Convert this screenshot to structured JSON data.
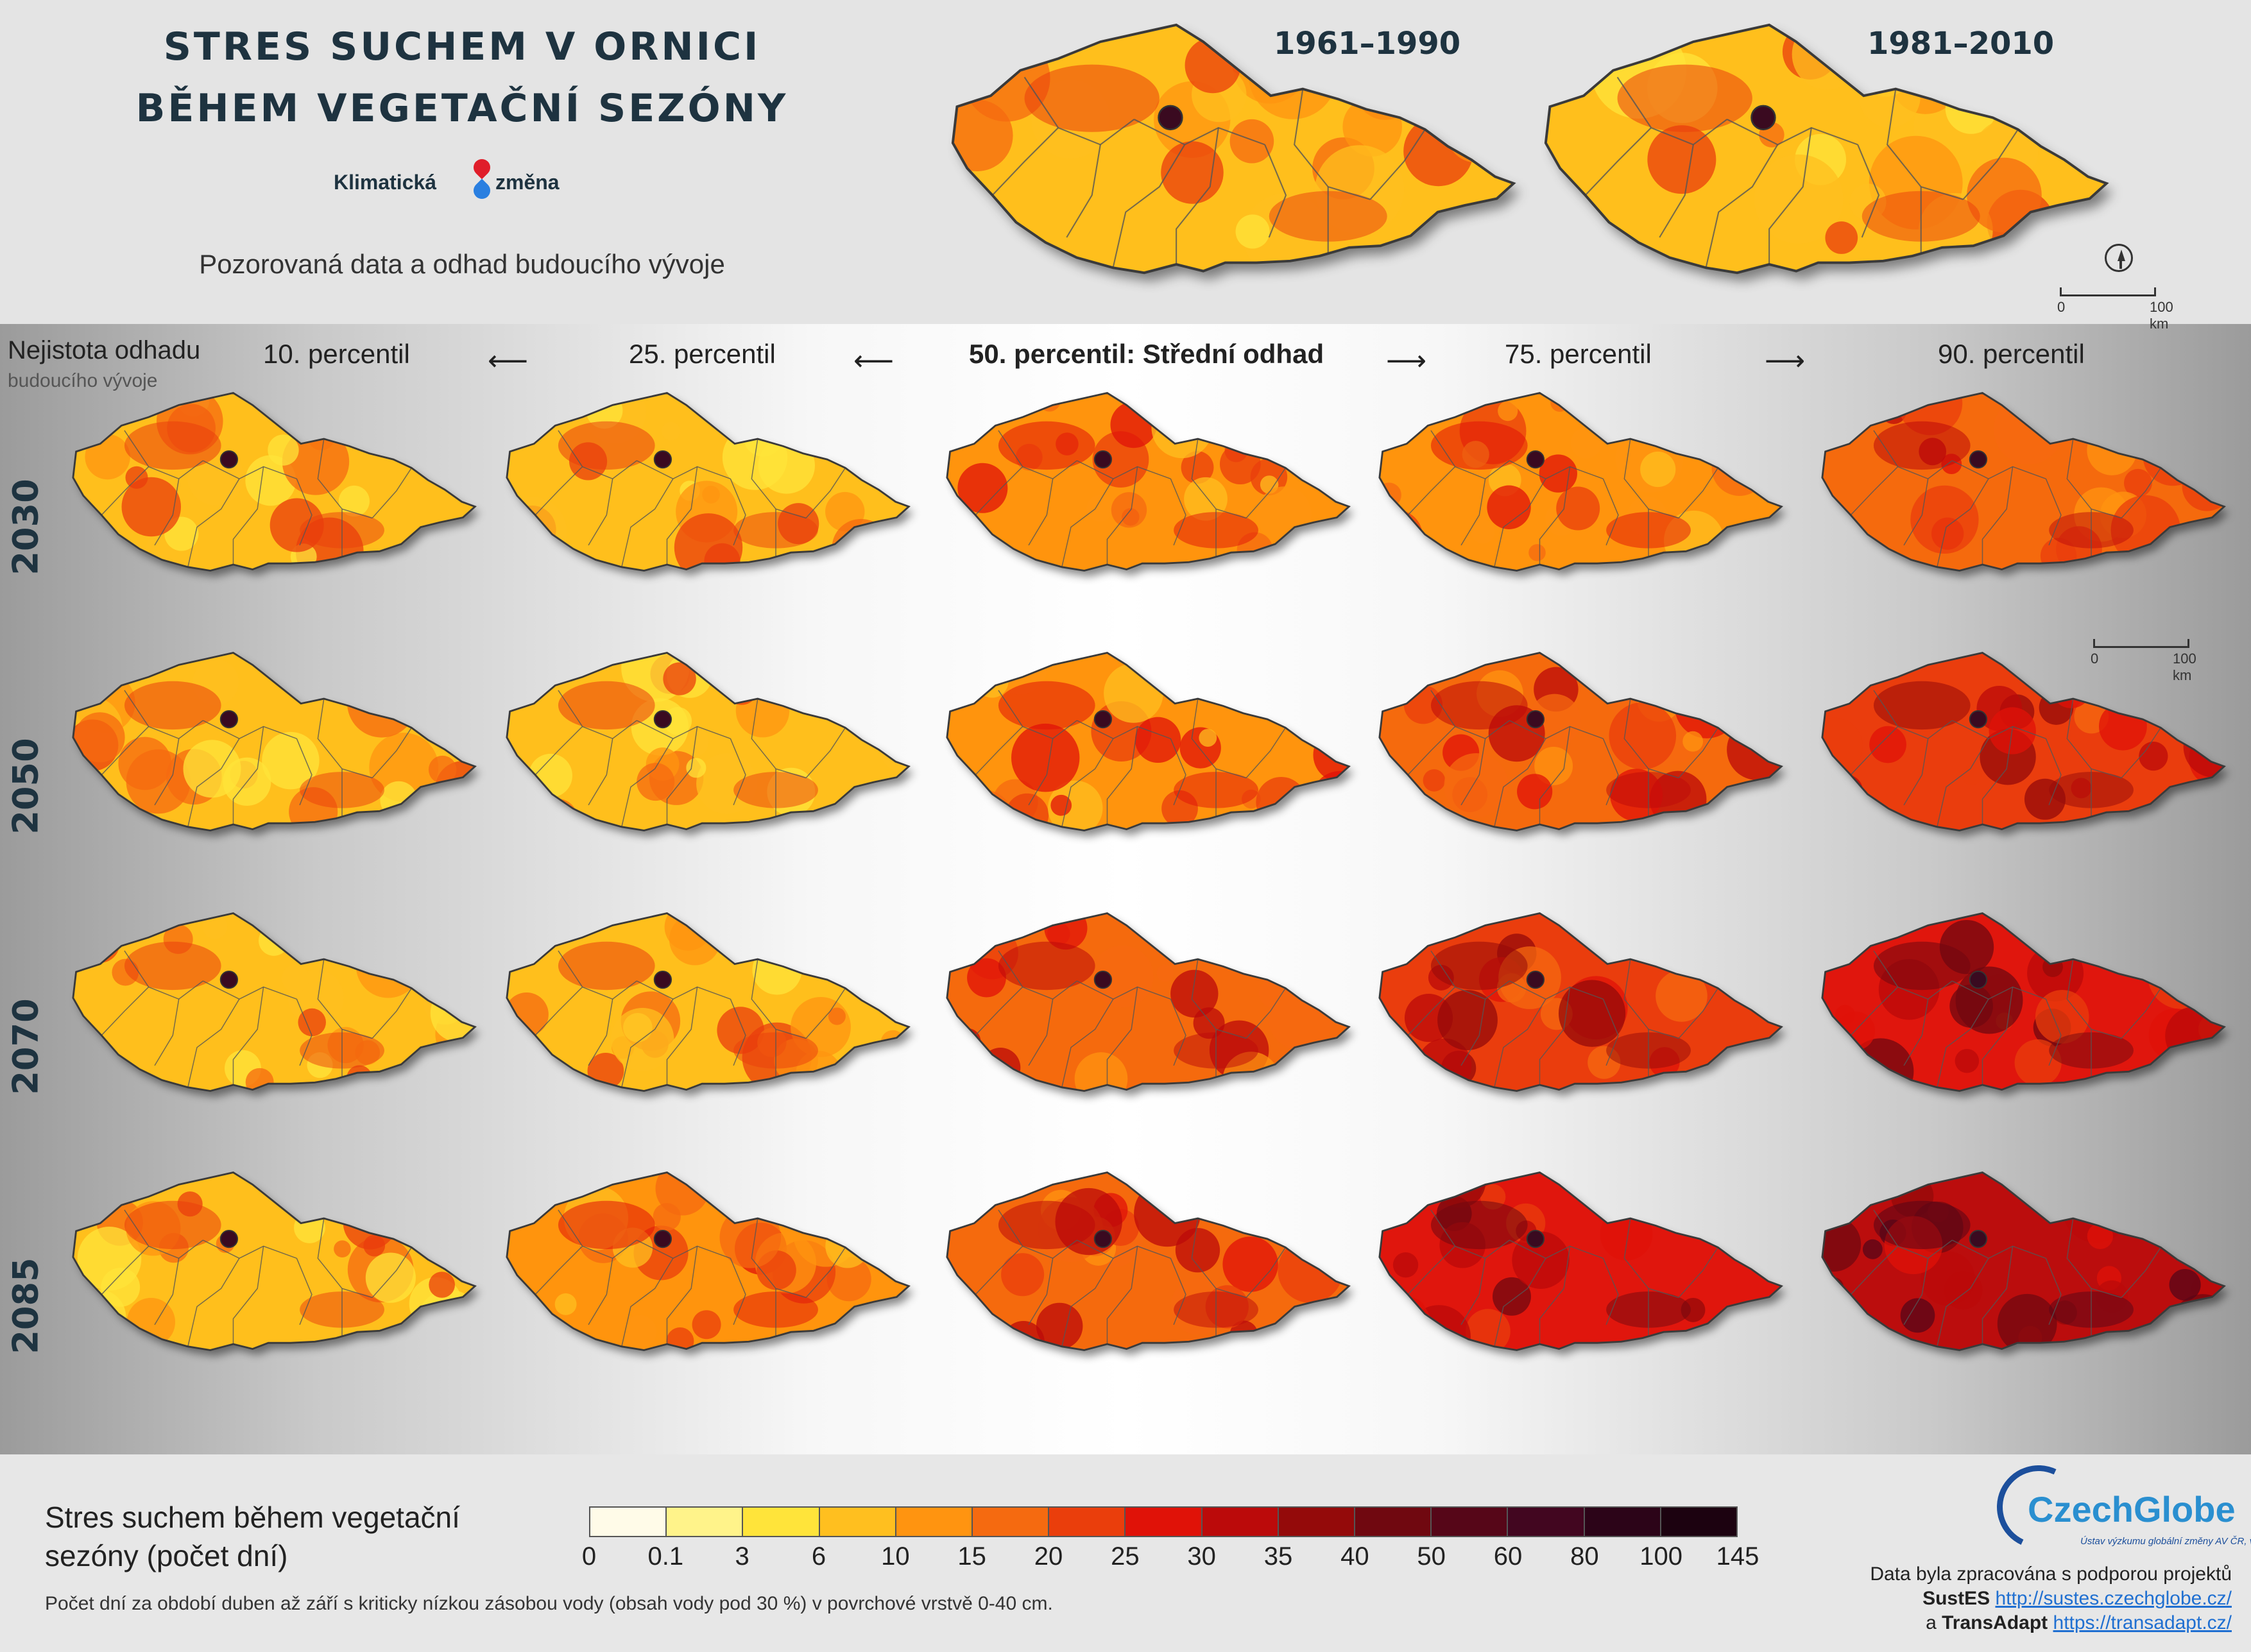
{
  "header": {
    "title_line1": "STRES SUCHEM V ORNICI",
    "title_line2": "BĚHEM VEGETAČNÍ SEZÓNY",
    "logo_left": "Klimatická",
    "logo_right": "změna",
    "subtitle": "Pozorovaná data a odhad budoucího vývoje"
  },
  "observed": {
    "periods": [
      {
        "label": "1961–1990",
        "intensity": 0.1
      },
      {
        "label": "1981–2010",
        "intensity": 0.14
      }
    ],
    "scale_zero": "0",
    "scale_label": "100 km"
  },
  "uncertainty": {
    "line1": "Nejistota odhadu",
    "line2": "budoucího vývoje"
  },
  "columns": [
    "10. percentil",
    "25. percentil",
    "50. percentil: Střední odhad",
    "75. percentil",
    "90. percentil"
  ],
  "arrows": {
    "left": "⟵",
    "right": "⟶"
  },
  "rows": [
    {
      "year": "2030",
      "intensity": [
        0.1,
        0.14,
        0.22,
        0.34,
        0.46
      ]
    },
    {
      "year": "2050",
      "intensity": [
        0.12,
        0.17,
        0.28,
        0.44,
        0.56
      ]
    },
    {
      "year": "2070",
      "intensity": [
        0.14,
        0.2,
        0.36,
        0.58,
        0.76
      ]
    },
    {
      "year": "2085",
      "intensity": [
        0.16,
        0.22,
        0.48,
        0.7,
        0.9
      ]
    }
  ],
  "grid_scale": {
    "zero": "0",
    "label": "100 km"
  },
  "legend": {
    "title_line1": "Stres suchem během vegetační",
    "title_line2": "sezóny (počet dní)",
    "ticks": [
      "0",
      "0.1",
      "3",
      "6",
      "10",
      "15",
      "20",
      "25",
      "30",
      "35",
      "40",
      "50",
      "60",
      "80",
      "100",
      "145"
    ],
    "colors": [
      "#fffbe8",
      "#fff38a",
      "#ffe43a",
      "#ffbf1f",
      "#ff9410",
      "#f56a10",
      "#ea3e0c",
      "#e01208",
      "#bb0a0a",
      "#940a0a",
      "#700810",
      "#560618",
      "#420620",
      "#2c0418",
      "#1c0210"
    ],
    "note": "Počet dní za období duben až září s kriticky nízkou zásobou vody (obsah vody pod 30 %) v povrchové vrstvě 0-40 cm."
  },
  "credits": {
    "org_name": "CzechGlobe",
    "org_sub": "Ústav výzkumu globální změny AV ČR, v. v. i.",
    "line1": "Data byla zpracována s podporou projektů",
    "project1_name": "SustES",
    "project1_url": "http://sustes.czechglobe.cz/",
    "conj": "a",
    "project2_name": "TransAdapt",
    "project2_url": "https://transadapt.cz/"
  },
  "map_colors": {
    "border": "#3a3a3a",
    "region_lines": "#555555"
  }
}
